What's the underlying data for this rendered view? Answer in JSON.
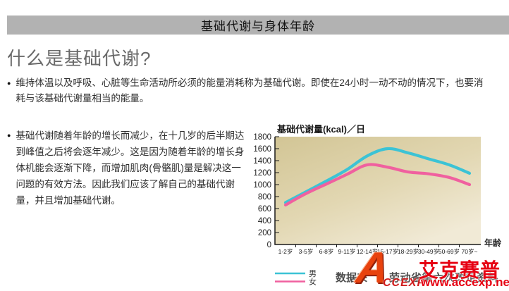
{
  "page": {
    "top_bar_title": "基础代谢与身体年龄",
    "heading": "什么是基础代谢?",
    "bullets": [
      "维持体温以及呼吸、心脏等生命活动所必须的能量消耗称为基础代谢。即使在24小时一动不动的情况下，也要消耗与该基础代谢量相当的能量。",
      "基础代谢随着年龄的增长而减少，在十几岁的后半期达到峰值之后将会逐年减少。这是因为随着年龄的增长身体机能会逐渐下降，而增加肌肉(骨骼肌)量是解决这一问题的有效方法。因此我们应该了解自己的基础代谢量，并且增加基础代谢。"
    ]
  },
  "chart_data": {
    "type": "line",
    "title": "基础代谢量(kcal)／日",
    "xlabel": "年龄",
    "categories": [
      "1-2岁",
      "3-5岁",
      "6-8岁",
      "9-11岁",
      "12-14岁",
      "15-17岁",
      "18-29岁",
      "30-49岁",
      "50-69岁",
      "70岁~"
    ],
    "series": [
      {
        "name": "男",
        "color": "#3cc3d5",
        "values": [
          700,
          880,
          1060,
          1250,
          1480,
          1600,
          1530,
          1430,
          1330,
          1190
        ]
      },
      {
        "name": "女",
        "color": "#f0609f",
        "values": [
          660,
          850,
          1010,
          1170,
          1330,
          1290,
          1210,
          1180,
          1120,
          1000
        ]
      }
    ],
    "ylim": [
      0,
      1800
    ],
    "ytick_step": 200,
    "legend_position": "bottom-left",
    "grid": false,
    "plot_bg_colors": [
      "#d2c595",
      "#e2d7b2",
      "#f1ead6"
    ],
    "axis_color": "#1a1a1a"
  },
  "source": {
    "visible_prefix": "数据来",
    "visible_suffix": "劳动省第六次改定资料"
  },
  "watermark": {
    "logo_letter": "A",
    "logo_sub": "CCEXP",
    "brand": "艾克赛普",
    "url": "www.accexp.net",
    "color": "#e60012"
  }
}
